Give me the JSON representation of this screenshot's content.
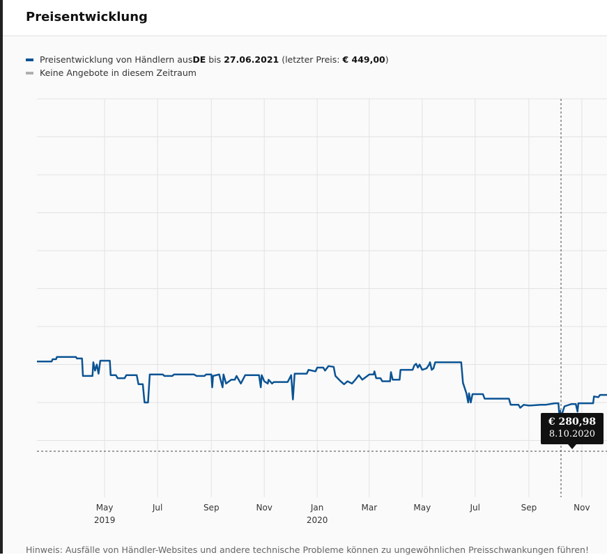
{
  "header": {
    "title": "Preisentwicklung"
  },
  "legend": {
    "series_prefix": "Preisentwicklung von Händlern aus ",
    "country": "DE",
    "until_word": " bis ",
    "date": "27.06.2021",
    "last_price_prefix": " (letzter Preis: ",
    "last_price": "€ 449,00",
    "last_price_suffix": ")",
    "no_offers": "Keine Angebote in diesem Zeitraum"
  },
  "colors": {
    "series": "#0b5394",
    "no_offers": "#b0b0b0",
    "grid": "#e2e2e2",
    "tooltip_bg": "#111111"
  },
  "tooltip": {
    "price": "€ 280,98",
    "date": "8.10.2020"
  },
  "footer": {
    "note": "Hinweis: Ausfälle von Händler-Websites und andere technische Probleme können zu ungewöhnlichen Preisschwankungen führen!"
  },
  "chart_data": {
    "type": "line",
    "title": "Preisentwicklung",
    "x_start": "2019-02-12",
    "x_end": "2020-11-30",
    "ylim": [
      200,
      700
    ],
    "grid": true,
    "legend_position": "top-left",
    "x_ticks": [
      {
        "date": "2019-05-01",
        "label": "May",
        "sub": "2019"
      },
      {
        "date": "2019-07-01",
        "label": "Jul",
        "sub": ""
      },
      {
        "date": "2019-09-01",
        "label": "Sep",
        "sub": ""
      },
      {
        "date": "2019-11-01",
        "label": "Nov",
        "sub": ""
      },
      {
        "date": "2020-01-01",
        "label": "Jan",
        "sub": "2020"
      },
      {
        "date": "2020-03-01",
        "label": "Mar",
        "sub": ""
      },
      {
        "date": "2020-05-01",
        "label": "May",
        "sub": ""
      },
      {
        "date": "2020-07-01",
        "label": "Jul",
        "sub": ""
      },
      {
        "date": "2020-09-01",
        "label": "Sep",
        "sub": ""
      },
      {
        "date": "2020-11-01",
        "label": "Nov",
        "sub": ""
      }
    ],
    "y_gridlines": [
      250,
      300,
      350,
      400,
      450,
      500,
      550,
      600,
      650,
      700
    ],
    "highlight": {
      "date": "2020-10-08",
      "price": 280.98
    },
    "series": [
      {
        "name": "Preisentwicklung von Händlern aus DE",
        "points": [
          [
            "2019-02-12",
            354
          ],
          [
            "2019-03-01",
            354
          ],
          [
            "2019-03-02",
            357
          ],
          [
            "2019-03-06",
            357
          ],
          [
            "2019-03-07",
            360
          ],
          [
            "2019-03-29",
            360
          ],
          [
            "2019-03-30",
            358
          ],
          [
            "2019-04-05",
            358
          ],
          [
            "2019-04-06",
            335
          ],
          [
            "2019-04-17",
            335
          ],
          [
            "2019-04-18",
            353
          ],
          [
            "2019-04-20",
            342
          ],
          [
            "2019-04-22",
            350
          ],
          [
            "2019-04-24",
            338
          ],
          [
            "2019-04-26",
            355
          ],
          [
            "2019-05-07",
            355
          ],
          [
            "2019-05-08",
            336
          ],
          [
            "2019-05-14",
            336
          ],
          [
            "2019-05-16",
            332
          ],
          [
            "2019-05-24",
            332
          ],
          [
            "2019-05-26",
            336
          ],
          [
            "2019-06-07",
            336
          ],
          [
            "2019-06-09",
            324
          ],
          [
            "2019-06-14",
            324
          ],
          [
            "2019-06-16",
            300
          ],
          [
            "2019-06-20",
            300
          ],
          [
            "2019-06-22",
            337
          ],
          [
            "2019-07-07",
            337
          ],
          [
            "2019-07-09",
            335
          ],
          [
            "2019-07-18",
            335
          ],
          [
            "2019-07-20",
            337
          ],
          [
            "2019-08-12",
            337
          ],
          [
            "2019-08-15",
            335
          ],
          [
            "2019-08-24",
            335
          ],
          [
            "2019-08-26",
            337
          ],
          [
            "2019-09-01",
            337
          ],
          [
            "2019-09-02",
            320
          ],
          [
            "2019-09-03",
            335
          ],
          [
            "2019-09-10",
            337
          ],
          [
            "2019-09-14",
            320
          ],
          [
            "2019-09-15",
            337
          ],
          [
            "2019-09-18",
            325
          ],
          [
            "2019-09-24",
            330
          ],
          [
            "2019-09-28",
            330
          ],
          [
            "2019-09-30",
            335
          ],
          [
            "2019-10-05",
            325
          ],
          [
            "2019-10-10",
            336
          ],
          [
            "2019-10-26",
            336
          ],
          [
            "2019-10-28",
            320
          ],
          [
            "2019-10-29",
            336
          ],
          [
            "2019-11-01",
            328
          ],
          [
            "2019-11-05",
            325
          ],
          [
            "2019-11-06",
            330
          ],
          [
            "2019-11-10",
            325
          ],
          [
            "2019-11-12",
            327
          ],
          [
            "2019-11-20",
            327
          ],
          [
            "2019-11-28",
            327
          ],
          [
            "2019-12-02",
            336
          ],
          [
            "2019-12-04",
            304
          ],
          [
            "2019-12-06",
            338
          ],
          [
            "2019-12-20",
            338
          ],
          [
            "2019-12-22",
            343
          ],
          [
            "2019-12-30",
            341
          ],
          [
            "2020-01-01",
            346
          ],
          [
            "2020-01-08",
            346
          ],
          [
            "2020-01-10",
            342
          ],
          [
            "2020-01-14",
            348
          ],
          [
            "2020-01-20",
            347
          ],
          [
            "2020-01-22",
            335
          ],
          [
            "2020-01-28",
            328
          ],
          [
            "2020-02-01",
            324
          ],
          [
            "2020-02-05",
            328
          ],
          [
            "2020-02-10",
            325
          ],
          [
            "2020-02-14",
            330
          ],
          [
            "2020-02-18",
            336
          ],
          [
            "2020-02-22",
            330
          ],
          [
            "2020-03-01",
            337
          ],
          [
            "2020-03-06",
            337
          ],
          [
            "2020-03-07",
            341
          ],
          [
            "2020-03-09",
            332
          ],
          [
            "2020-03-14",
            332
          ],
          [
            "2020-03-16",
            328
          ],
          [
            "2020-03-25",
            328
          ],
          [
            "2020-03-26",
            340
          ],
          [
            "2020-03-28",
            330
          ],
          [
            "2020-04-05",
            330
          ],
          [
            "2020-04-06",
            343
          ],
          [
            "2020-04-20",
            343
          ],
          [
            "2020-04-22",
            349
          ],
          [
            "2020-04-24",
            351
          ],
          [
            "2020-04-26",
            346
          ],
          [
            "2020-04-28",
            350
          ],
          [
            "2020-05-01",
            343
          ],
          [
            "2020-05-06",
            345
          ],
          [
            "2020-05-09",
            350
          ],
          [
            "2020-05-10",
            353
          ],
          [
            "2020-05-12",
            343
          ],
          [
            "2020-05-14",
            345
          ],
          [
            "2020-05-16",
            353
          ],
          [
            "2020-06-15",
            353
          ],
          [
            "2020-06-17",
            326
          ],
          [
            "2020-06-21",
            312
          ],
          [
            "2020-06-23",
            300
          ],
          [
            "2020-06-24",
            312
          ],
          [
            "2020-06-26",
            300
          ],
          [
            "2020-06-28",
            311
          ],
          [
            "2020-07-10",
            311
          ],
          [
            "2020-07-12",
            305
          ],
          [
            "2020-08-09",
            305
          ],
          [
            "2020-08-11",
            297
          ],
          [
            "2020-08-20",
            297
          ],
          [
            "2020-08-22",
            293
          ],
          [
            "2020-08-26",
            297
          ],
          [
            "2020-09-01",
            296
          ],
          [
            "2020-09-15",
            297
          ],
          [
            "2020-09-20",
            297
          ],
          [
            "2020-10-01",
            299
          ],
          [
            "2020-10-05",
            299
          ],
          [
            "2020-10-06",
            285
          ],
          [
            "2020-10-07",
            289
          ],
          [
            "2020-10-08",
            280.98
          ],
          [
            "2020-10-12",
            295
          ],
          [
            "2020-10-20",
            298
          ],
          [
            "2020-10-25",
            298
          ],
          [
            "2020-10-27",
            288
          ],
          [
            "2020-10-28",
            299
          ],
          [
            "2020-11-14",
            299
          ],
          [
            "2020-11-15",
            308
          ],
          [
            "2020-11-20",
            307
          ],
          [
            "2020-11-22",
            310
          ],
          [
            "2020-11-30",
            310
          ]
        ]
      }
    ]
  }
}
